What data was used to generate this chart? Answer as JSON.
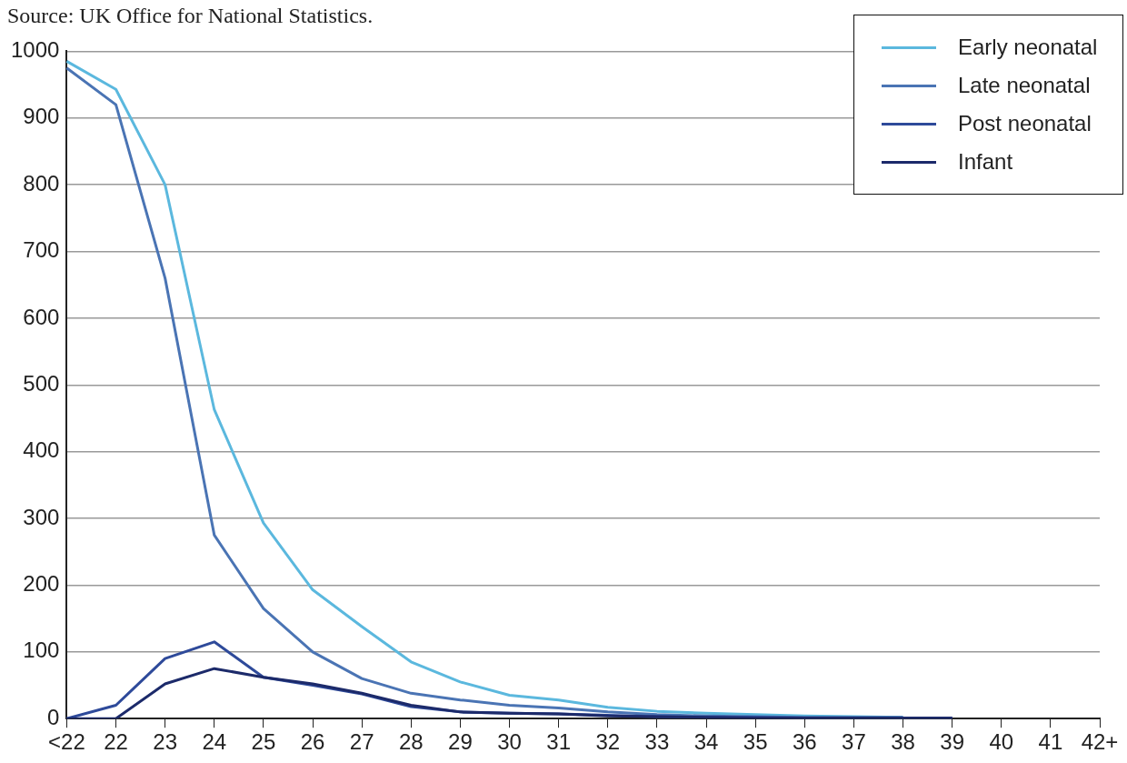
{
  "chart_data": {
    "type": "line",
    "annotations": [
      "Source: UK Office for National Statistics."
    ],
    "categories": [
      "<22",
      "22",
      "23",
      "24",
      "25",
      "26",
      "27",
      "28",
      "29",
      "30",
      "31",
      "32",
      "33",
      "34",
      "35",
      "36",
      "37",
      "38",
      "39",
      "40",
      "41",
      "42+"
    ],
    "series": [
      {
        "name": "Early neonatal",
        "color": "#5bb8de",
        "values": [
          985,
          943,
          800,
          463,
          293,
          193,
          138,
          85,
          55,
          35,
          28,
          17,
          11,
          8,
          6,
          4,
          3,
          2,
          null,
          null,
          null,
          null
        ]
      },
      {
        "name": "Late neonatal",
        "color": "#4a74b4",
        "values": [
          975,
          920,
          660,
          275,
          165,
          100,
          60,
          38,
          28,
          20,
          16,
          10,
          6,
          4,
          3,
          2,
          2,
          2,
          null,
          null,
          null,
          null
        ]
      },
      {
        "name": "Post neonatal",
        "color": "#2e4a9a",
        "values": [
          0,
          20,
          90,
          115,
          62,
          50,
          37,
          18,
          10,
          8,
          7,
          5,
          3,
          2,
          2,
          1,
          1,
          1,
          1,
          null,
          null,
          null
        ]
      },
      {
        "name": "Infant",
        "color": "#1c2a6a",
        "values": [
          0,
          0,
          52,
          75,
          62,
          52,
          38,
          20,
          10,
          8,
          7,
          4,
          3,
          2,
          1,
          1,
          1,
          1,
          1,
          null,
          null,
          null
        ]
      }
    ],
    "ylim": [
      0,
      1000
    ],
    "yticks": [
      0,
      100,
      200,
      300,
      400,
      500,
      600,
      700,
      800,
      900,
      1000
    ],
    "grid": "y",
    "legend": "top right",
    "marker": "none",
    "line_style": "solid"
  }
}
